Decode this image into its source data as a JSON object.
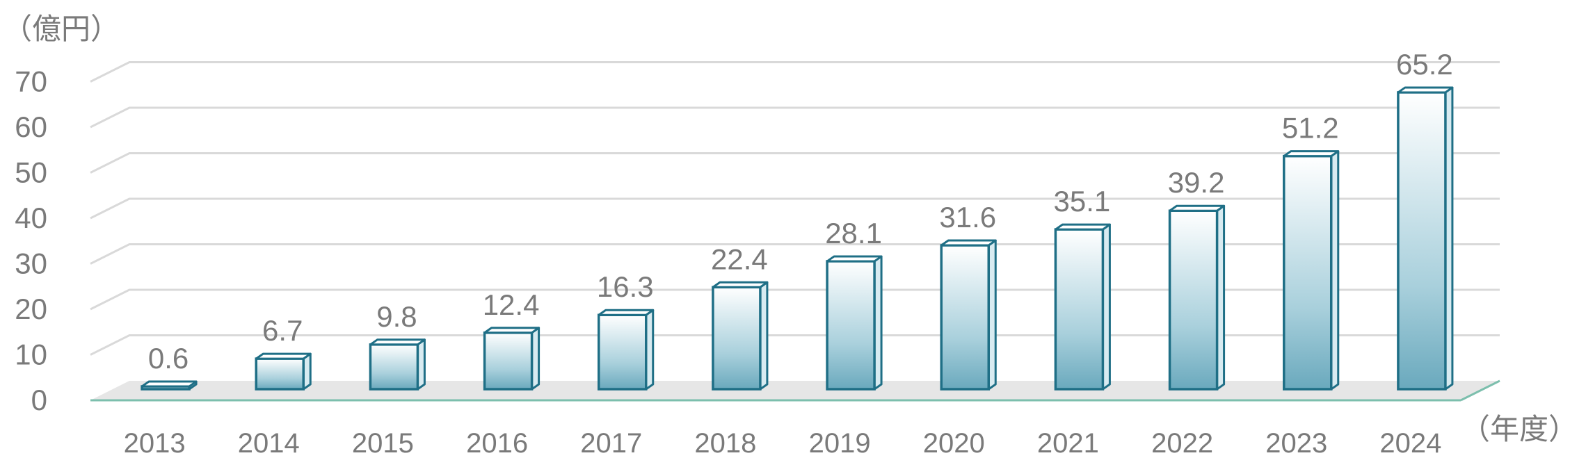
{
  "chart_data": {
    "type": "bar",
    "style": "3d-column",
    "y_unit_label": "（億円）",
    "x_unit_label": "（年度）",
    "categories": [
      "2013",
      "2014",
      "2015",
      "2016",
      "2017",
      "2018",
      "2019",
      "2020",
      "2021",
      "2022",
      "2023",
      "2024"
    ],
    "values": [
      0.6,
      6.7,
      9.8,
      12.4,
      16.3,
      22.4,
      28.1,
      31.6,
      35.1,
      39.2,
      51.2,
      65.2
    ],
    "data_labels": [
      "0.6",
      "6.7",
      "9.8",
      "12.4",
      "16.3",
      "22.4",
      "28.1",
      "31.6",
      "35.1",
      "39.2",
      "51.2",
      "65.2"
    ],
    "ylim": [
      0,
      70
    ],
    "yticks": [
      0,
      10,
      20,
      30,
      40,
      50,
      60,
      70
    ],
    "grid": true,
    "colors": {
      "bar_edge": "#1f6f86",
      "bar_top_fill": "#ffffff",
      "bar_bottom_fill": "#6aa9bd",
      "gridline": "#d9d9d9",
      "floor": "#e6e6e6",
      "floor_edge": "#7cbfad",
      "text": "#7a7a7a"
    }
  }
}
